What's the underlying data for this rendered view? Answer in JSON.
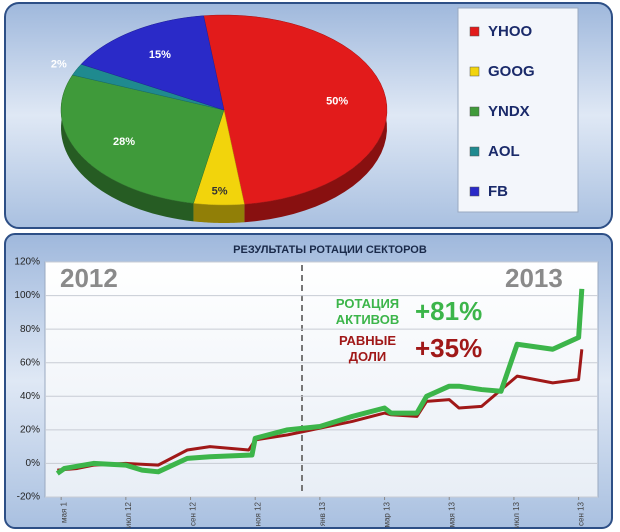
{
  "chart_data": [
    {
      "type": "pie",
      "categories": [
        "YHOO",
        "GOOG",
        "YNDX",
        "AOL",
        "FB"
      ],
      "values": [
        50,
        5,
        28,
        2,
        15
      ],
      "value_labels": [
        "50%",
        "5%",
        "28%",
        "2%",
        "15%"
      ],
      "colors": [
        "#e21b1b",
        "#f2d40c",
        "#3f9a3a",
        "#1f8a8f",
        "#2a2ac8"
      ]
    },
    {
      "type": "line",
      "title": "РЕЗУЛЬТАТЫ РОТАЦИИ СЕКТОРОВ",
      "xlim": [
        -0.5,
        16.6
      ],
      "xticks": [
        {
          "value": 0,
          "label": "мая 1"
        },
        {
          "value": 2,
          "label": "июл 12"
        },
        {
          "value": 4,
          "label": "сен 12"
        },
        {
          "value": 6,
          "label": "ноя 12"
        },
        {
          "value": 8,
          "label": "янв 13"
        },
        {
          "value": 10,
          "label": "мар 13"
        },
        {
          "value": 12,
          "label": "мая 13"
        },
        {
          "value": 14,
          "label": "июл 13"
        },
        {
          "value": 16,
          "label": "сен 13"
        }
      ],
      "ylim": [
        -20,
        120
      ],
      "yticks": [
        {
          "value": -20,
          "label": "-20%"
        },
        {
          "value": 0,
          "label": "0%"
        },
        {
          "value": 20,
          "label": "20%"
        },
        {
          "value": 40,
          "label": "40%"
        },
        {
          "value": 60,
          "label": "60%"
        },
        {
          "value": 80,
          "label": "80%"
        },
        {
          "value": 100,
          "label": "100%"
        },
        {
          "value": 120,
          "label": "120%"
        }
      ],
      "grid": true,
      "annotations": [
        "2012",
        "2013",
        "+81%",
        "+35%"
      ],
      "series": [
        {
          "name": "РОТАЦИЯ АКТИВОВ",
          "color": "#3cb54a",
          "x": [
            -0.12,
            0.1,
            1,
            2,
            2.5,
            3,
            3.9,
            4.6,
            5.9,
            6,
            7,
            8,
            9,
            10,
            10.2,
            11,
            11.3,
            12,
            12.3,
            13,
            13.6,
            14.1,
            15.2,
            16,
            16.1
          ],
          "values": [
            -6,
            -3,
            0,
            -1,
            -4,
            -5,
            3,
            4,
            5,
            15,
            20,
            22,
            28,
            33,
            30,
            30,
            40,
            46,
            46,
            44,
            43,
            71,
            68,
            75,
            104
          ]
        },
        {
          "name": "РАВНЫЕ ДОЛИ",
          "color": "#a01818",
          "x": [
            -0.12,
            0.5,
            1,
            2,
            3,
            3.9,
            4.6,
            5.8,
            6,
            7,
            8,
            9,
            10,
            10.2,
            11,
            11.3,
            12,
            12.3,
            13,
            14.1,
            15.2,
            16,
            16.1
          ],
          "values": [
            -4,
            -3,
            -1,
            0,
            -1,
            8,
            10,
            8,
            14,
            17,
            21,
            25,
            30,
            29,
            28,
            37,
            38,
            33,
            34,
            52,
            48,
            50,
            68
          ]
        }
      ]
    }
  ]
}
